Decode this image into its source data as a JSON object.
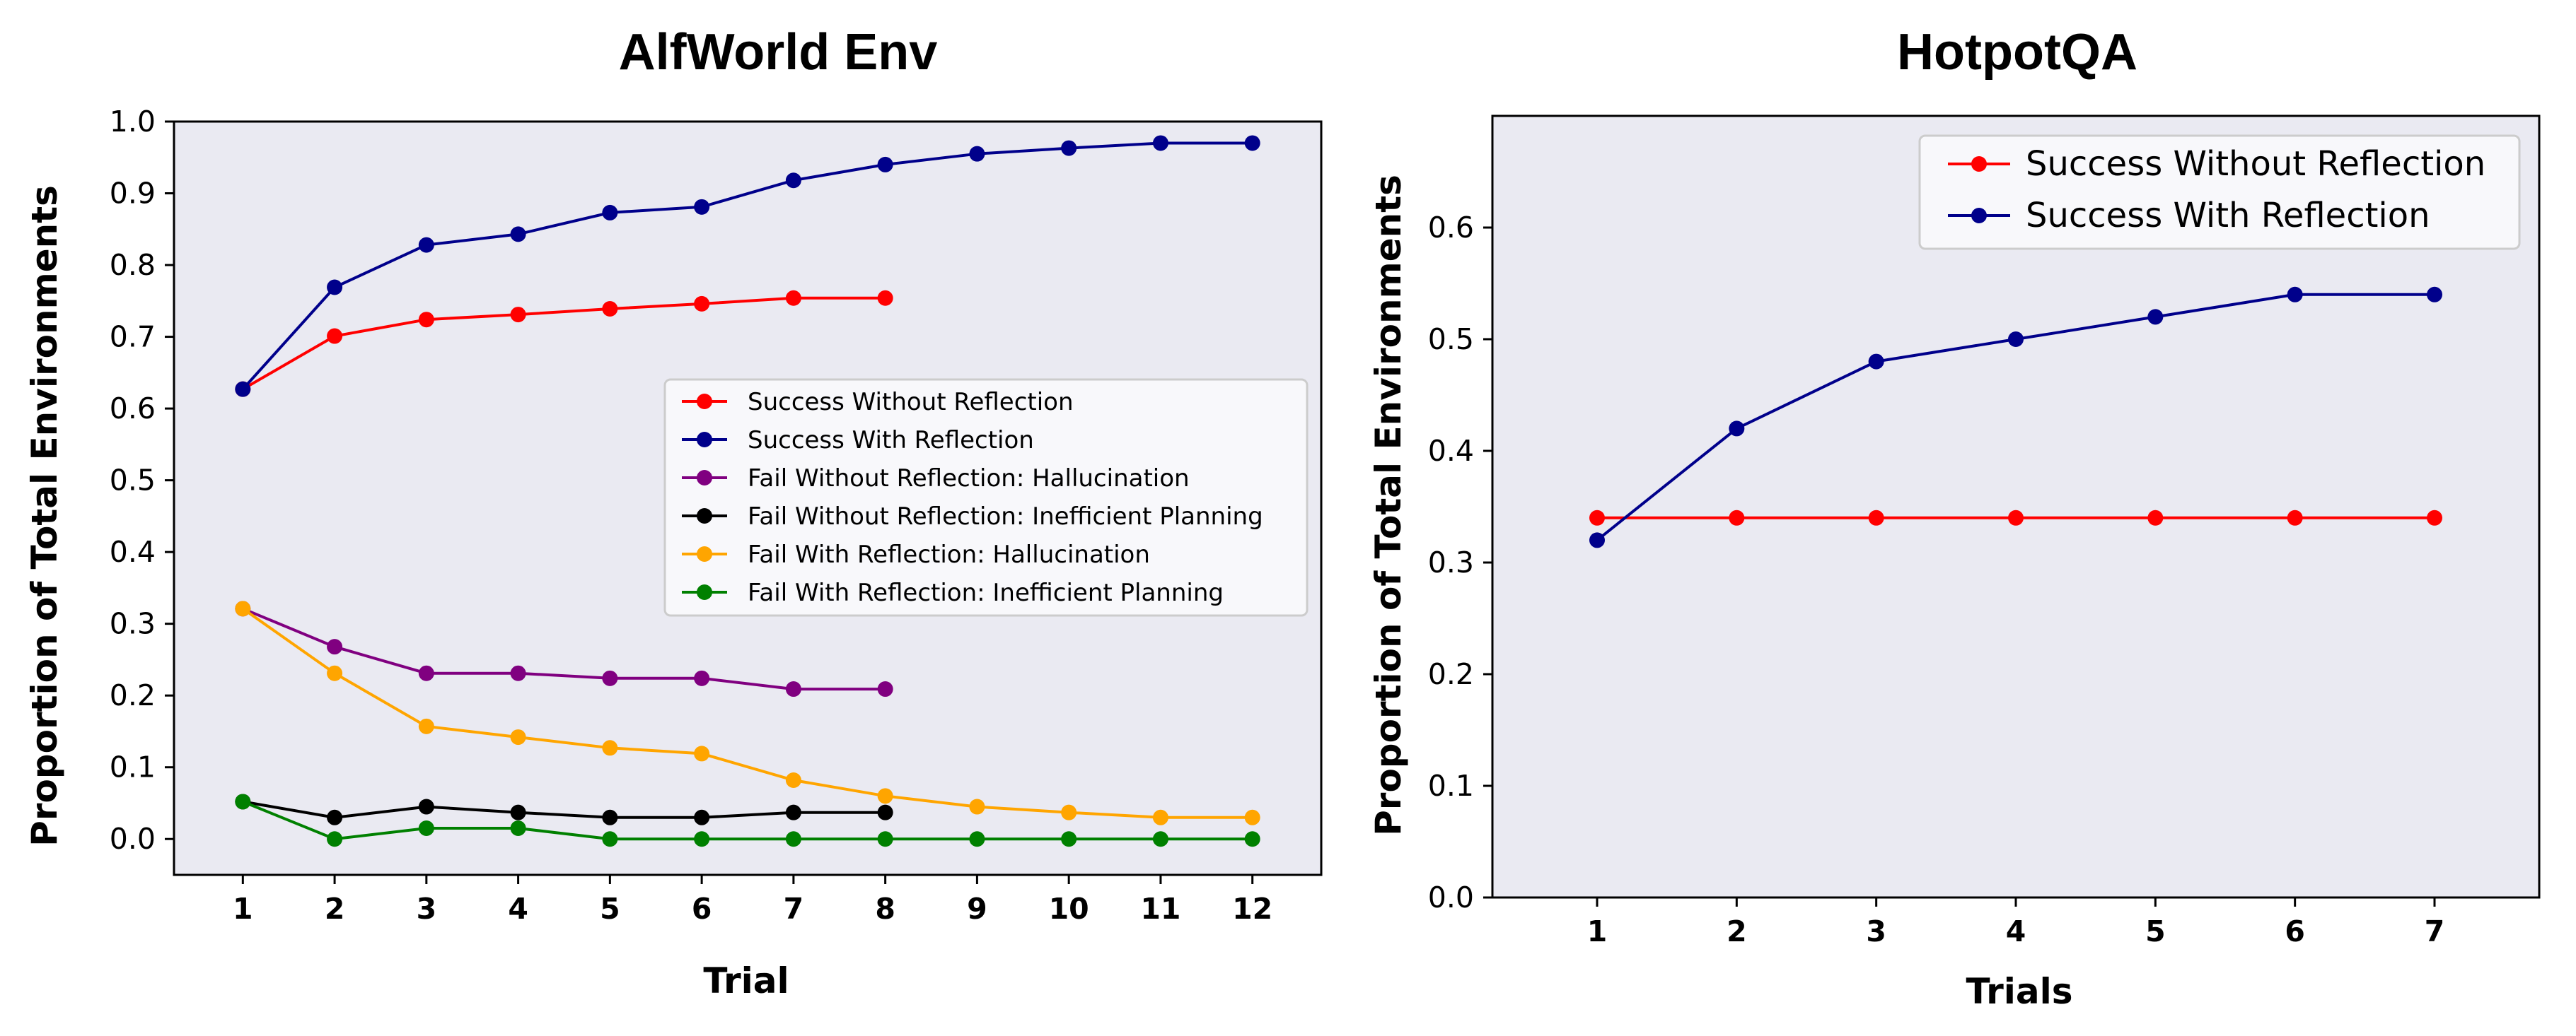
{
  "chart_data": [
    {
      "type": "line",
      "title": "AlfWorld Env",
      "xlabel": "Trial",
      "ylabel": "Proportion of Total Environments",
      "xticks": [
        1,
        2,
        3,
        4,
        5,
        6,
        7,
        8,
        9,
        10,
        11,
        12
      ],
      "yticks": [
        "0.0",
        "0.1",
        "0.2",
        "0.3",
        "0.4",
        "0.5",
        "0.6",
        "0.7",
        "0.8",
        "0.9",
        "1.0"
      ],
      "xlim": [
        0.25,
        12.75
      ],
      "ylim": [
        -0.05,
        1.0
      ],
      "legend_position": "center-right",
      "series": [
        {
          "name": "Success Without Reflection",
          "color": "#ff0000",
          "x": [
            1,
            2,
            3,
            4,
            5,
            6,
            7,
            8
          ],
          "y": [
            0.627,
            0.701,
            0.724,
            0.731,
            0.739,
            0.746,
            0.754,
            0.754
          ]
        },
        {
          "name": "Success With Reflection",
          "color": "#00008b",
          "x": [
            1,
            2,
            3,
            4,
            5,
            6,
            7,
            8,
            9,
            10,
            11,
            12
          ],
          "y": [
            0.627,
            0.769,
            0.828,
            0.843,
            0.873,
            0.881,
            0.918,
            0.94,
            0.955,
            0.963,
            0.97,
            0.97
          ]
        },
        {
          "name": "Fail Without Reflection: Hallucination",
          "color": "#800080",
          "x": [
            1,
            2,
            3,
            4,
            5,
            6,
            7,
            8
          ],
          "y": [
            0.321,
            0.268,
            0.231,
            0.231,
            0.224,
            0.224,
            0.209,
            0.209
          ]
        },
        {
          "name": "Fail Without Reflection: Inefficient Planning",
          "color": "#000000",
          "x": [
            1,
            2,
            3,
            4,
            5,
            6,
            7,
            8
          ],
          "y": [
            0.052,
            0.03,
            0.045,
            0.037,
            0.03,
            0.03,
            0.037,
            0.037
          ]
        },
        {
          "name": "Fail With Reflection: Hallucination",
          "color": "#ffa500",
          "x": [
            1,
            2,
            3,
            4,
            5,
            6,
            7,
            8,
            9,
            10,
            11,
            12
          ],
          "y": [
            0.321,
            0.231,
            0.157,
            0.142,
            0.127,
            0.119,
            0.082,
            0.06,
            0.045,
            0.037,
            0.03,
            0.03
          ]
        },
        {
          "name": "Fail With Reflection: Inefficient Planning",
          "color": "#008000",
          "x": [
            1,
            2,
            3,
            4,
            5,
            6,
            7,
            8,
            9,
            10,
            11,
            12
          ],
          "y": [
            0.052,
            0.0,
            0.015,
            0.015,
            0.0,
            0.0,
            0.0,
            0.0,
            0.0,
            0.0,
            0.0,
            0.0
          ]
        }
      ]
    },
    {
      "type": "line",
      "title": "HotpotQA",
      "xlabel": "Trials",
      "ylabel": "Proportion of Total Environments",
      "xticks": [
        1,
        2,
        3,
        4,
        5,
        6,
        7
      ],
      "yticks": [
        "0.0",
        "0.1",
        "0.2",
        "0.3",
        "0.4",
        "0.5",
        "0.6"
      ],
      "xlim": [
        0.25,
        7.75
      ],
      "ylim": [
        0.0,
        0.7
      ],
      "legend_position": "top-right",
      "series": [
        {
          "name": "Success Without Reflection",
          "color": "#ff0000",
          "x": [
            1,
            2,
            3,
            4,
            5,
            6,
            7
          ],
          "y": [
            0.34,
            0.34,
            0.34,
            0.34,
            0.34,
            0.34,
            0.34
          ]
        },
        {
          "name": "Success With Reflection",
          "color": "#00008b",
          "x": [
            1,
            2,
            3,
            4,
            5,
            6,
            7
          ],
          "y": [
            0.32,
            0.42,
            0.48,
            0.5,
            0.52,
            0.54,
            0.54
          ]
        }
      ]
    }
  ],
  "style": {
    "plot_background": "#eaeaf2",
    "legend_background": "#f8f8fb",
    "axis_color": "#000000"
  }
}
